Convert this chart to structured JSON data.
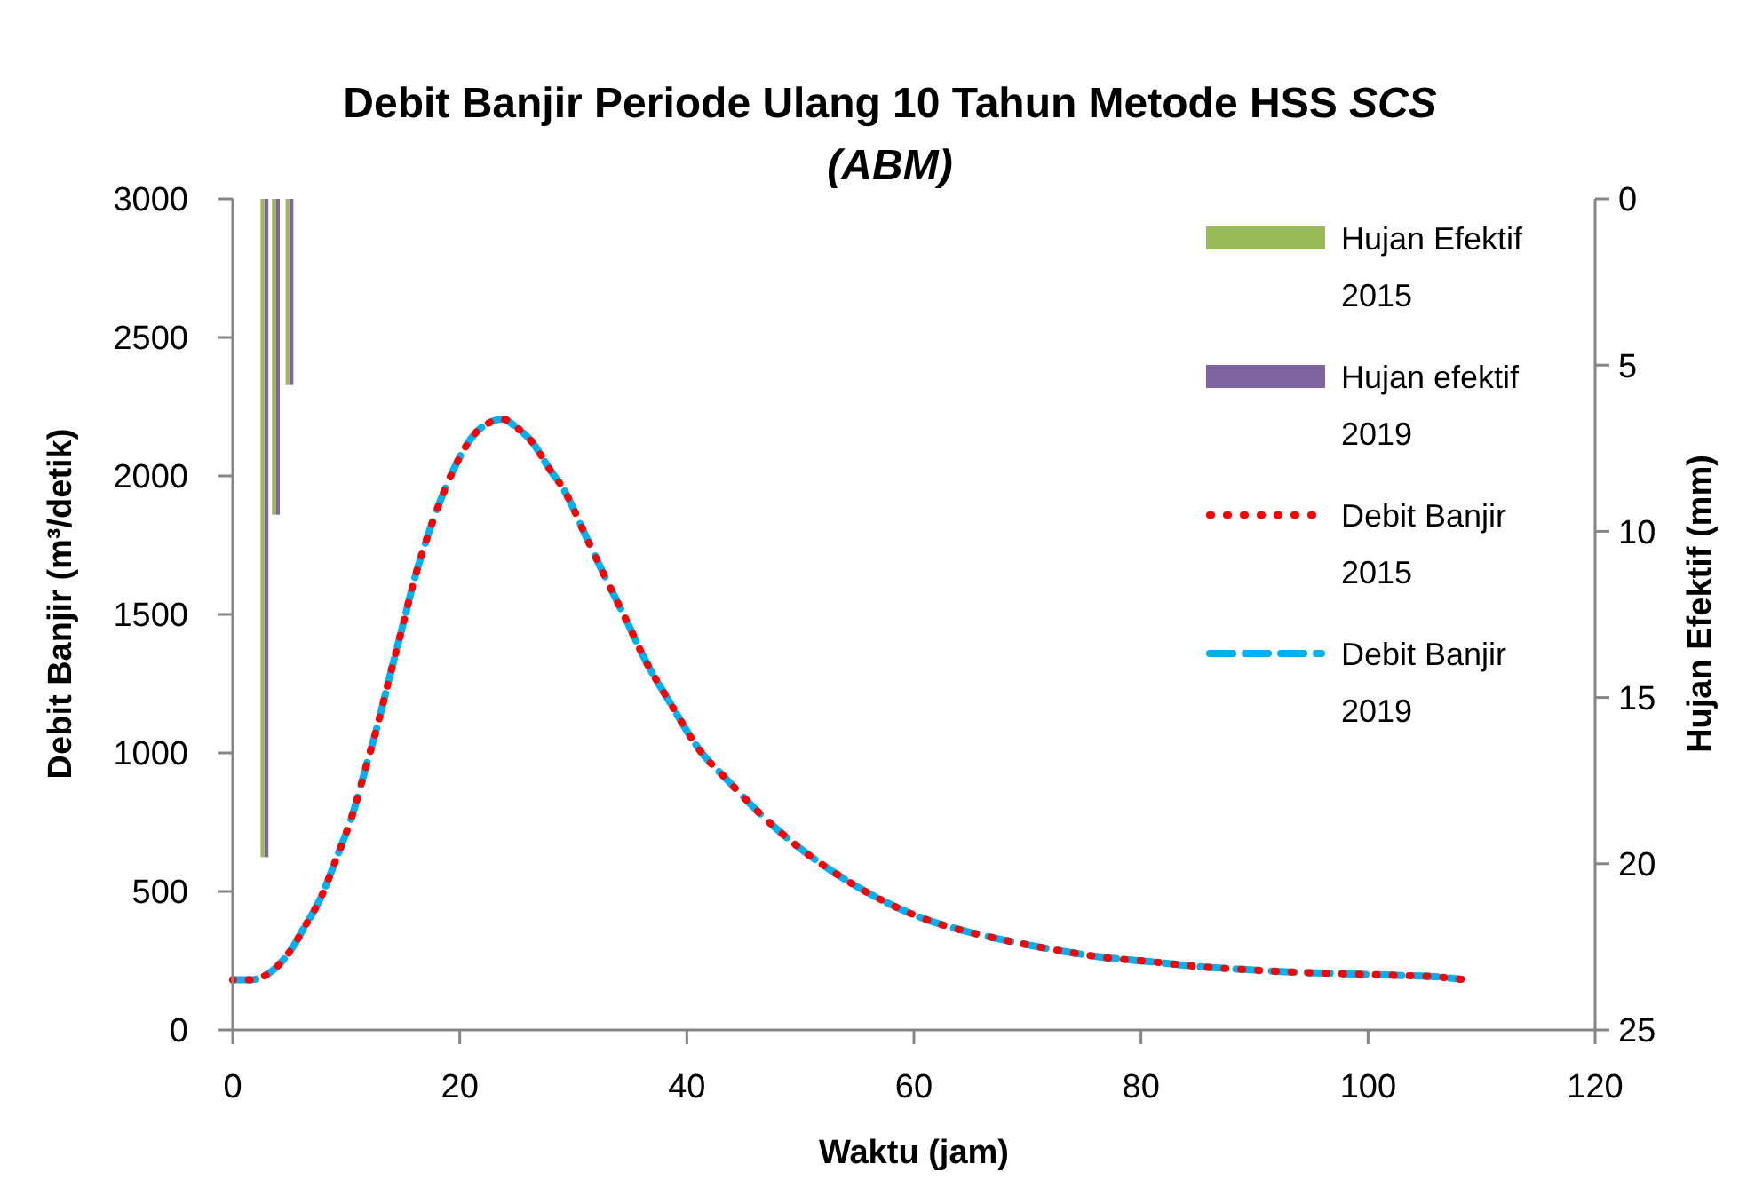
{
  "chart_data": {
    "type": "line",
    "title": "Debit Banjir Periode Ulang 10 Tahun Metode HSS SCS (ABM)",
    "xlabel": "Waktu (jam)",
    "ylabel": "Debit Banjir (m³/detik)",
    "y2label": "Hujan Efektif (mm)",
    "xlim": [
      0,
      120
    ],
    "xticks": [
      0,
      20,
      40,
      60,
      80,
      100,
      120
    ],
    "ylim": [
      0,
      3000
    ],
    "yticks": [
      0,
      500,
      1000,
      1500,
      2000,
      2500,
      3000
    ],
    "y2lim": [
      25,
      0
    ],
    "y2ticks": [
      0,
      5,
      10,
      15,
      20,
      25
    ],
    "legend": "top right",
    "series": [
      {
        "name": "Hujan Efektif 2015",
        "type": "bar",
        "axis": "y2",
        "color": "#9bbb59",
        "x": [
          2.8,
          3.8,
          5.0
        ],
        "values": [
          19.8,
          9.5,
          5.6
        ]
      },
      {
        "name": "Hujan efektif 2019",
        "type": "bar",
        "axis": "y2",
        "color": "#8064a2",
        "x": [
          2.8,
          3.8,
          5.0
        ],
        "values": [
          19.8,
          9.5,
          5.6
        ]
      },
      {
        "name": "Debit Banjir 2015",
        "color": "#ff0000",
        "line_style": "dotted",
        "x": [
          0,
          1.6,
          3.2,
          5.4,
          6.2,
          7.8,
          9,
          10.7,
          11.6,
          12.9,
          13.7,
          14.9,
          16.1,
          17.1,
          18.8,
          20.2,
          21.1,
          22.5,
          23.8,
          25,
          26.3,
          28,
          29.1,
          31.2,
          32.6,
          34.8,
          36.2,
          38.6,
          41.2,
          43.5,
          46.9,
          49.4,
          53.4,
          57.7,
          60.6,
          65.3,
          68.5,
          73.3,
          76.5,
          81.5,
          84.7,
          89.6,
          92.8,
          97.8,
          102.6,
          105.9,
          108.2
        ],
        "values": [
          181,
          181,
          205,
          306,
          363,
          481,
          605,
          797,
          929,
          1122,
          1254,
          1447,
          1641,
          1774,
          1962,
          2083,
          2141,
          2190,
          2205,
          2175,
          2126,
          2019,
          1955,
          1774,
          1652,
          1468,
          1346,
          1176,
          1006,
          905,
          763,
          674,
          557,
          458,
          406,
          349,
          320,
          283,
          263,
          244,
          230,
          217,
          210,
          203,
          197,
          192,
          183
        ]
      },
      {
        "name": "Debit Banjir 2019",
        "color": "#00b0f0",
        "line_style": "dashed",
        "x": [
          0,
          1.6,
          3.2,
          5.4,
          6.2,
          7.8,
          9,
          10.7,
          11.6,
          12.9,
          13.7,
          14.9,
          16.1,
          17.1,
          18.8,
          20.2,
          21.1,
          22.5,
          23.8,
          25,
          26.3,
          28,
          29.1,
          31.2,
          32.6,
          34.8,
          36.2,
          38.6,
          41.2,
          43.5,
          46.9,
          49.4,
          53.4,
          57.7,
          60.6,
          65.3,
          68.5,
          73.3,
          76.5,
          81.5,
          84.7,
          89.6,
          92.8,
          97.8,
          102.6,
          105.9,
          108.2
        ],
        "values": [
          181,
          181,
          205,
          306,
          363,
          481,
          605,
          797,
          929,
          1122,
          1254,
          1447,
          1641,
          1774,
          1962,
          2083,
          2141,
          2190,
          2205,
          2175,
          2126,
          2019,
          1955,
          1774,
          1652,
          1468,
          1346,
          1176,
          1006,
          905,
          763,
          674,
          557,
          458,
          406,
          349,
          320,
          283,
          263,
          244,
          230,
          217,
          210,
          203,
          197,
          192,
          183
        ]
      }
    ]
  }
}
